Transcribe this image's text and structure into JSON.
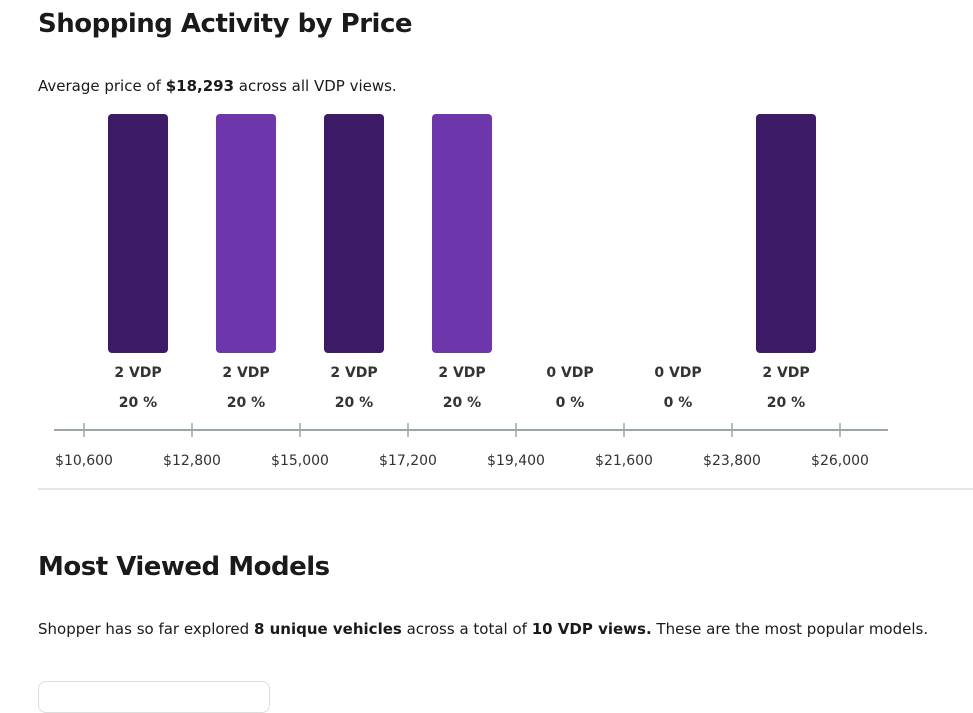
{
  "price_section": {
    "title": "Shopping Activity by Price",
    "summary": {
      "prefix": "Average price of ",
      "average": "$18,293",
      "suffix": " across all VDP views."
    }
  },
  "chart_data": {
    "type": "histogram",
    "bins": [
      {
        "value": 10600,
        "label": "$10,600"
      },
      {
        "value": 12800,
        "label": "$12,800"
      },
      {
        "value": 15000,
        "label": "$15,000"
      },
      {
        "value": 17200,
        "label": "$17,200"
      },
      {
        "value": 19400,
        "label": "$19,400"
      },
      {
        "value": 21600,
        "label": "$21,600"
      },
      {
        "value": 23800,
        "label": "$23,800"
      },
      {
        "value": 26000,
        "label": "$26,000"
      }
    ],
    "values": [
      2,
      2,
      2,
      2,
      0,
      0,
      2
    ],
    "value_labels": [
      "2 VDP",
      "2 VDP",
      "2 VDP",
      "2 VDP",
      "0 VDP",
      "0 VDP",
      "2 VDP"
    ],
    "percents": [
      20,
      20,
      20,
      20,
      0,
      0,
      20
    ],
    "percent_labels": [
      "20 %",
      "20 %",
      "20 %",
      "20 %",
      "0 %",
      "0 %",
      "20 %"
    ],
    "colors": [
      "#3d1a66",
      "#6d37ab",
      "#3d1a66",
      "#6d37ab",
      "#3d1a66",
      "#6d37ab",
      "#3d1a66"
    ],
    "ylim": [
      0,
      2
    ]
  },
  "models_section": {
    "title": "Most Viewed Models",
    "summary": {
      "part1": "Shopper has so far explored ",
      "vehicles": "8 unique vehicles",
      "part2": " across a total of ",
      "views": "10 VDP views.",
      "part3": " These are the most popular models."
    }
  }
}
